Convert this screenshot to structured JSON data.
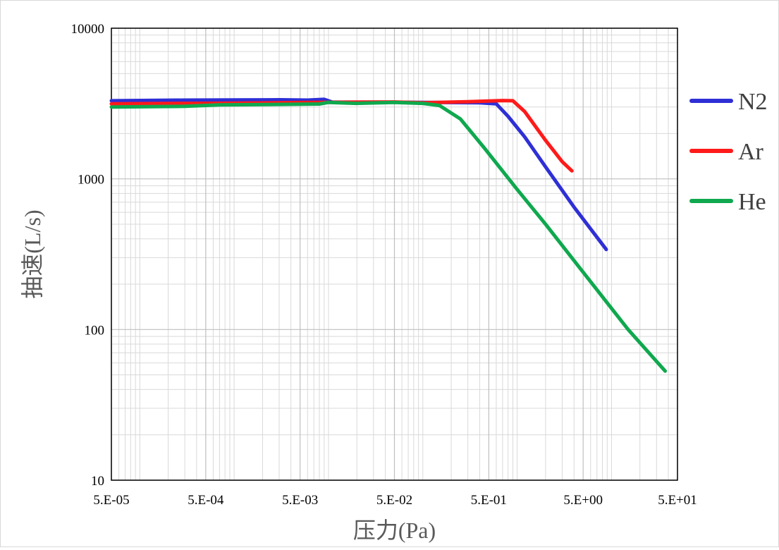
{
  "chart_data": {
    "type": "line",
    "xlabel": "压力(Pa)",
    "ylabel": "抽速(L/s)",
    "x_scale": "log",
    "y_scale": "log",
    "xlim": [
      5e-05,
      50
    ],
    "ylim": [
      10,
      10000
    ],
    "grid": true,
    "legend_position": "right",
    "x_ticks": [
      {
        "value": 5e-05,
        "label": "5.E-05"
      },
      {
        "value": 0.0005,
        "label": "5.E-04"
      },
      {
        "value": 0.005,
        "label": "5.E-03"
      },
      {
        "value": 0.05,
        "label": "5.E-02"
      },
      {
        "value": 0.5,
        "label": "5.E-01"
      },
      {
        "value": 5,
        "label": "5.E+00"
      },
      {
        "value": 50,
        "label": "5.E+01"
      }
    ],
    "y_ticks": [
      {
        "value": 10,
        "label": "10"
      },
      {
        "value": 100,
        "label": "100"
      },
      {
        "value": 1000,
        "label": "1000"
      },
      {
        "value": 10000,
        "label": "10000"
      }
    ],
    "series": [
      {
        "name": "N2",
        "color": "#2f2fd6",
        "points": [
          [
            5e-05,
            3300
          ],
          [
            0.0003,
            3330
          ],
          [
            0.001,
            3340
          ],
          [
            0.003,
            3350
          ],
          [
            0.006,
            3330
          ],
          [
            0.009,
            3370
          ],
          [
            0.011,
            3230
          ],
          [
            0.03,
            3230
          ],
          [
            0.1,
            3220
          ],
          [
            0.4,
            3200
          ],
          [
            0.6,
            3150
          ],
          [
            0.8,
            2600
          ],
          [
            1.2,
            1900
          ],
          [
            2.0,
            1200
          ],
          [
            4.0,
            650
          ],
          [
            8.8,
            340
          ]
        ]
      },
      {
        "name": "Ar",
        "color": "#ff1a1a",
        "points": [
          [
            5e-05,
            3150
          ],
          [
            0.0003,
            3170
          ],
          [
            0.001,
            3180
          ],
          [
            0.005,
            3210
          ],
          [
            0.02,
            3230
          ],
          [
            0.05,
            3240
          ],
          [
            0.1,
            3200
          ],
          [
            0.3,
            3250
          ],
          [
            0.7,
            3310
          ],
          [
            0.9,
            3300
          ],
          [
            1.2,
            2800
          ],
          [
            2.0,
            1800
          ],
          [
            3.0,
            1300
          ],
          [
            3.8,
            1130
          ]
        ]
      },
      {
        "name": "He",
        "color": "#0fa84e",
        "points": [
          [
            5e-05,
            3000
          ],
          [
            0.0003,
            3030
          ],
          [
            0.0007,
            3100
          ],
          [
            0.003,
            3120
          ],
          [
            0.008,
            3140
          ],
          [
            0.01,
            3220
          ],
          [
            0.02,
            3170
          ],
          [
            0.05,
            3220
          ],
          [
            0.1,
            3170
          ],
          [
            0.15,
            3070
          ],
          [
            0.25,
            2500
          ],
          [
            0.45,
            1600
          ],
          [
            1.0,
            850
          ],
          [
            2.0,
            500
          ],
          [
            5.0,
            240
          ],
          [
            15.0,
            100
          ],
          [
            37.0,
            53
          ]
        ]
      }
    ]
  }
}
